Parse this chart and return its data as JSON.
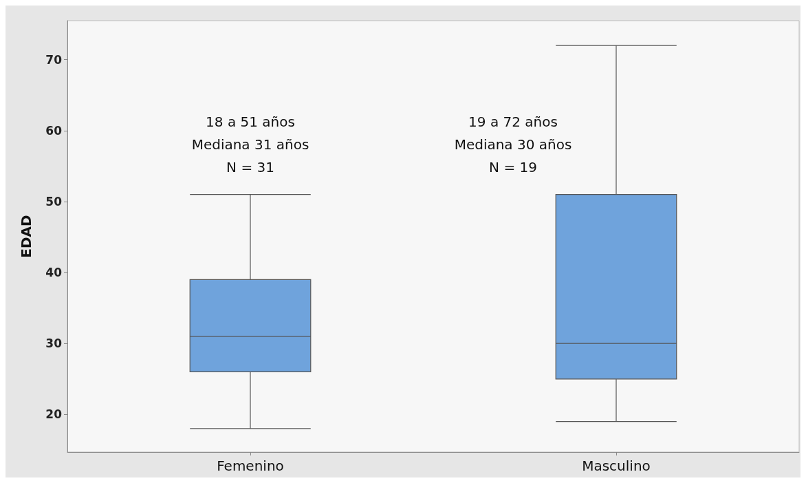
{
  "chart_data": {
    "type": "box",
    "ylabel": "EDAD",
    "categories": [
      "Femenino",
      "Masculino"
    ],
    "boxes": [
      {
        "low": 18,
        "q1": 26,
        "median": 31,
        "q3": 39,
        "high": 51
      },
      {
        "low": 19,
        "q1": 25,
        "median": 30,
        "q3": 51,
        "high": 72
      }
    ],
    "color": "#6fa3dc",
    "ylim": [
      14.7,
      75.5
    ],
    "yticks": [
      20,
      30,
      40,
      50,
      60,
      70
    ],
    "grid": false,
    "annotations": [
      "18 a 51 años\nMediana 31 años\nN = 31",
      "19 a 72 años\nMediana 30 años\nN = 19"
    ]
  }
}
